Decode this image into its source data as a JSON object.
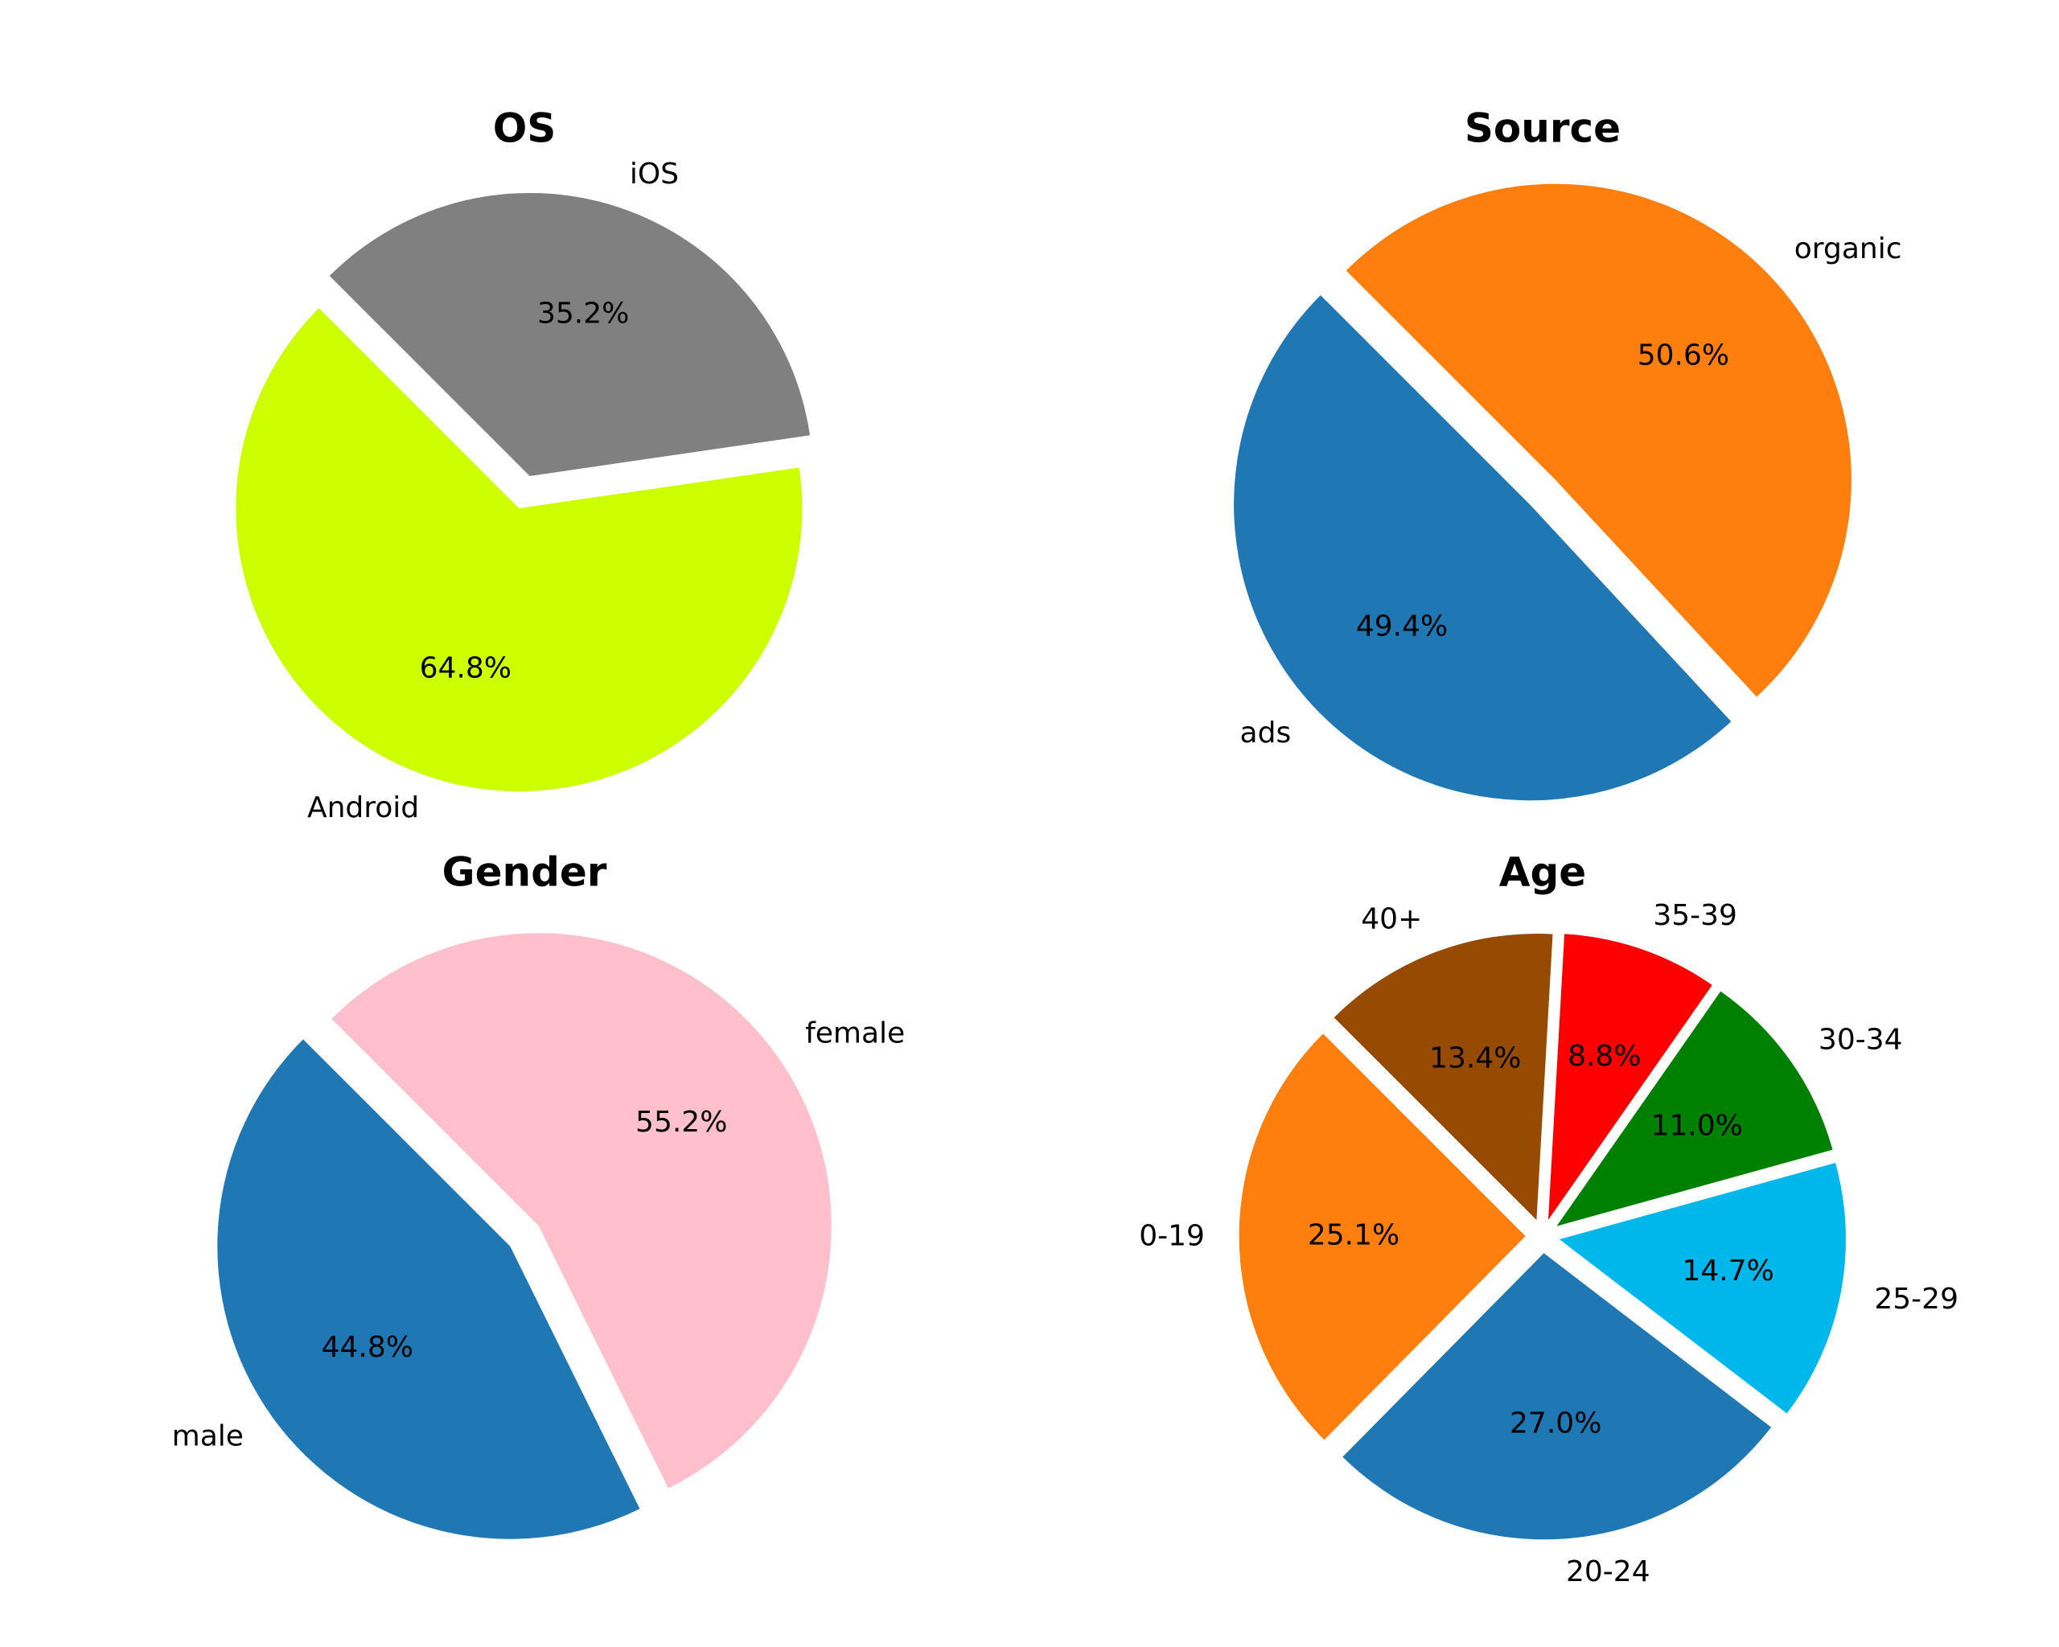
{
  "chart_data": [
    {
      "type": "pie",
      "title": "OS",
      "legend": "none",
      "slices": [
        {
          "label": "Android",
          "value": 64.8,
          "pct_label": "64.8%",
          "color": "#ccff00"
        },
        {
          "label": "iOS",
          "value": 35.2,
          "pct_label": "35.2%",
          "color": "#808080"
        }
      ]
    },
    {
      "type": "pie",
      "title": "Source",
      "legend": "none",
      "slices": [
        {
          "label": "ads",
          "value": 49.4,
          "pct_label": "49.4%",
          "color": "#1f77b4"
        },
        {
          "label": "organic",
          "value": 50.6,
          "pct_label": "50.6%",
          "color": "#ff7f0e"
        }
      ]
    },
    {
      "type": "pie",
      "title": "Gender",
      "legend": "none",
      "slices": [
        {
          "label": "male",
          "value": 44.8,
          "pct_label": "44.8%",
          "color": "#1f77b4"
        },
        {
          "label": "female",
          "value": 55.2,
          "pct_label": "55.2%",
          "color": "#ffc0cb"
        }
      ]
    },
    {
      "type": "pie",
      "title": "Age",
      "legend": "none",
      "slices": [
        {
          "label": "0-19",
          "value": 25.1,
          "pct_label": "25.1%",
          "color": "#ff7f0e"
        },
        {
          "label": "20-24",
          "value": 27.0,
          "pct_label": "27.0%",
          "color": "#1f77b4"
        },
        {
          "label": "25-29",
          "value": 14.7,
          "pct_label": "14.7%",
          "color": "#00b7eb"
        },
        {
          "label": "30-34",
          "value": 11.0,
          "pct_label": "11.0%",
          "color": "#008000"
        },
        {
          "label": "35-39",
          "value": 8.8,
          "pct_label": "8.8%",
          "color": "#ff0000"
        },
        {
          "label": "40+",
          "value": 13.4,
          "pct_label": "13.4%",
          "color": "#964b00"
        }
      ]
    }
  ]
}
